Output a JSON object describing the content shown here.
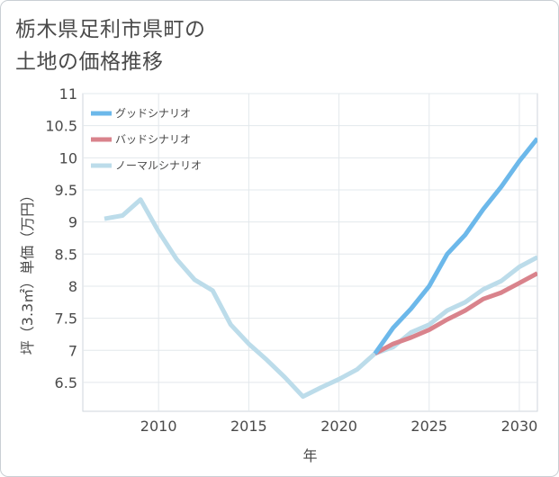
{
  "header": {
    "title_line1": "栃木県足利市県町の",
    "title_line2": "土地の価格推移"
  },
  "chart_data": {
    "type": "line",
    "title": "栃木県足利市県町の土地の価格推移",
    "xlabel": "年",
    "ylabel": "坪（3.3㎡）単価（万円）",
    "xlim": [
      2005.8,
      2031
    ],
    "ylim": [
      6.05,
      11
    ],
    "x_ticks": [
      2010,
      2015,
      2020,
      2025,
      2030
    ],
    "y_ticks": [
      6.5,
      7,
      7.5,
      8,
      8.5,
      9,
      9.5,
      10,
      10.5,
      11
    ],
    "grid": true,
    "legend_position": "top-left",
    "series": [
      {
        "name": "グッドシナリオ",
        "color": "#6cb8ea",
        "x": [
          2022,
          2023,
          2024,
          2025,
          2026,
          2027,
          2028,
          2029,
          2030,
          2031
        ],
        "values": [
          6.95,
          7.35,
          7.65,
          8.0,
          8.5,
          8.8,
          9.2,
          9.55,
          9.95,
          10.3
        ]
      },
      {
        "name": "バッドシナリオ",
        "color": "#d9838c",
        "x": [
          2022,
          2023,
          2024,
          2025,
          2026,
          2027,
          2028,
          2029,
          2030,
          2031
        ],
        "values": [
          6.95,
          7.1,
          7.2,
          7.32,
          7.48,
          7.62,
          7.8,
          7.9,
          8.05,
          8.2
        ]
      },
      {
        "name": "ノーマルシナリオ",
        "color": "#bcdcea",
        "x": [
          2007,
          2008,
          2009,
          2010,
          2011,
          2012,
          2013,
          2014,
          2015,
          2016,
          2017,
          2018,
          2019,
          2020,
          2021,
          2022,
          2023,
          2024,
          2025,
          2026,
          2027,
          2028,
          2029,
          2030,
          2031
        ],
        "values": [
          9.05,
          9.1,
          9.35,
          8.85,
          8.42,
          8.1,
          7.93,
          7.4,
          7.1,
          6.85,
          6.58,
          6.28,
          6.42,
          6.55,
          6.7,
          6.95,
          7.05,
          7.28,
          7.4,
          7.62,
          7.75,
          7.95,
          8.08,
          8.3,
          8.45
        ]
      }
    ]
  }
}
